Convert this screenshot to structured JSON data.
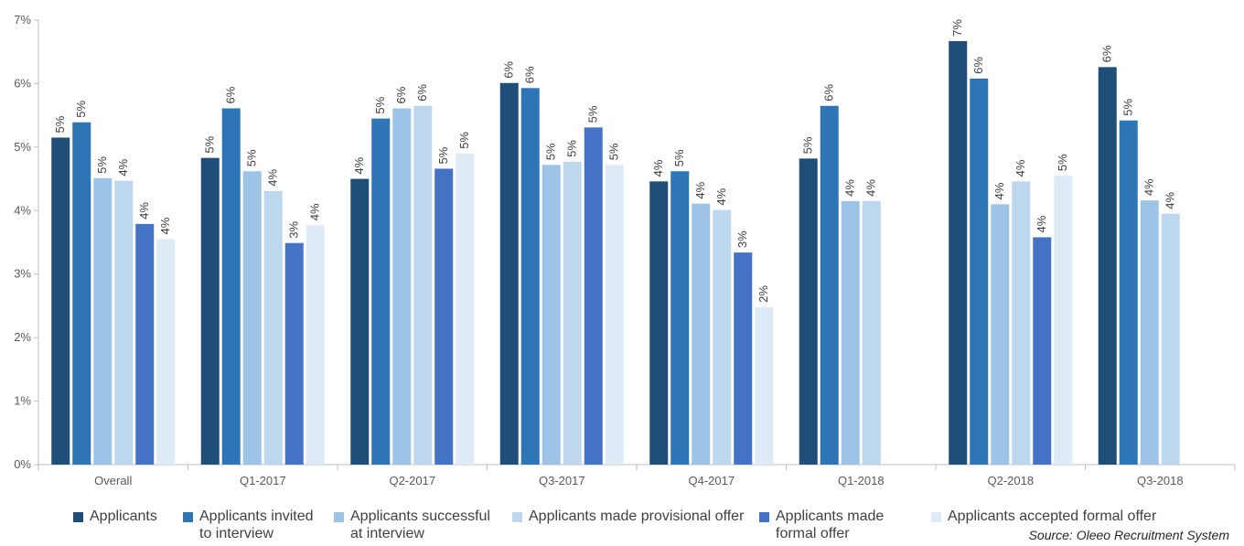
{
  "chart_data": {
    "type": "bar",
    "categories": [
      "Overall",
      "Q1-2017",
      "Q2-2017",
      "Q3-2017",
      "Q4-2017",
      "Q1-2018",
      "Q2-2018",
      "Q3-2018"
    ],
    "series": [
      {
        "name": "Applicants",
        "color": "#1f4e79",
        "values": [
          5.15,
          4.83,
          4.5,
          6.01,
          4.46,
          4.82,
          6.67,
          6.26
        ],
        "labels": [
          "5%",
          "5%",
          "4%",
          "6%",
          "4%",
          "5%",
          "7%",
          "6%"
        ]
      },
      {
        "name": "Applicants invited\nto interview",
        "color": "#2e75b6",
        "values": [
          5.39,
          5.61,
          5.45,
          5.93,
          4.62,
          5.65,
          6.08,
          5.42
        ],
        "labels": [
          "5%",
          "6%",
          "5%",
          "6%",
          "5%",
          "6%",
          "6%",
          "5%"
        ]
      },
      {
        "name": "Applicants successful\nat interview",
        "color": "#9dc3e6",
        "values": [
          4.51,
          4.62,
          5.61,
          4.72,
          4.11,
          4.15,
          4.1,
          4.16
        ],
        "labels": [
          "5%",
          "5%",
          "6%",
          "5%",
          "4%",
          "4%",
          "4%",
          "4%"
        ]
      },
      {
        "name": "Applicants made provisional offer",
        "color": "#bdd7ee",
        "values": [
          4.47,
          4.31,
          5.65,
          4.77,
          4.01,
          4.15,
          4.46,
          3.95
        ],
        "labels": [
          "4%",
          "4%",
          "6%",
          "5%",
          "4%",
          "4%",
          "4%",
          "4%"
        ]
      },
      {
        "name": "Applicants made\nformal offer",
        "color": "#4472c4",
        "values": [
          3.79,
          3.49,
          4.66,
          5.31,
          3.34,
          null,
          3.58,
          null
        ],
        "labels": [
          "4%",
          "3%",
          "5%",
          "5%",
          "3%",
          null,
          "4%",
          null
        ]
      },
      {
        "name": "Applicants accepted formal offer",
        "color": "#deebf7",
        "values": [
          3.55,
          3.77,
          4.9,
          4.72,
          2.48,
          null,
          4.55,
          null
        ],
        "labels": [
          "4%",
          "4%",
          "5%",
          "5%",
          "2%",
          null,
          "5%",
          null
        ]
      }
    ],
    "y_ticks": [
      "0%",
      "1%",
      "2%",
      "3%",
      "4%",
      "5%",
      "6%",
      "7%"
    ],
    "ylim": [
      0,
      7
    ],
    "grid": false,
    "legend_position": "bottom",
    "source": "Source: Oleeo Recruitment System"
  }
}
